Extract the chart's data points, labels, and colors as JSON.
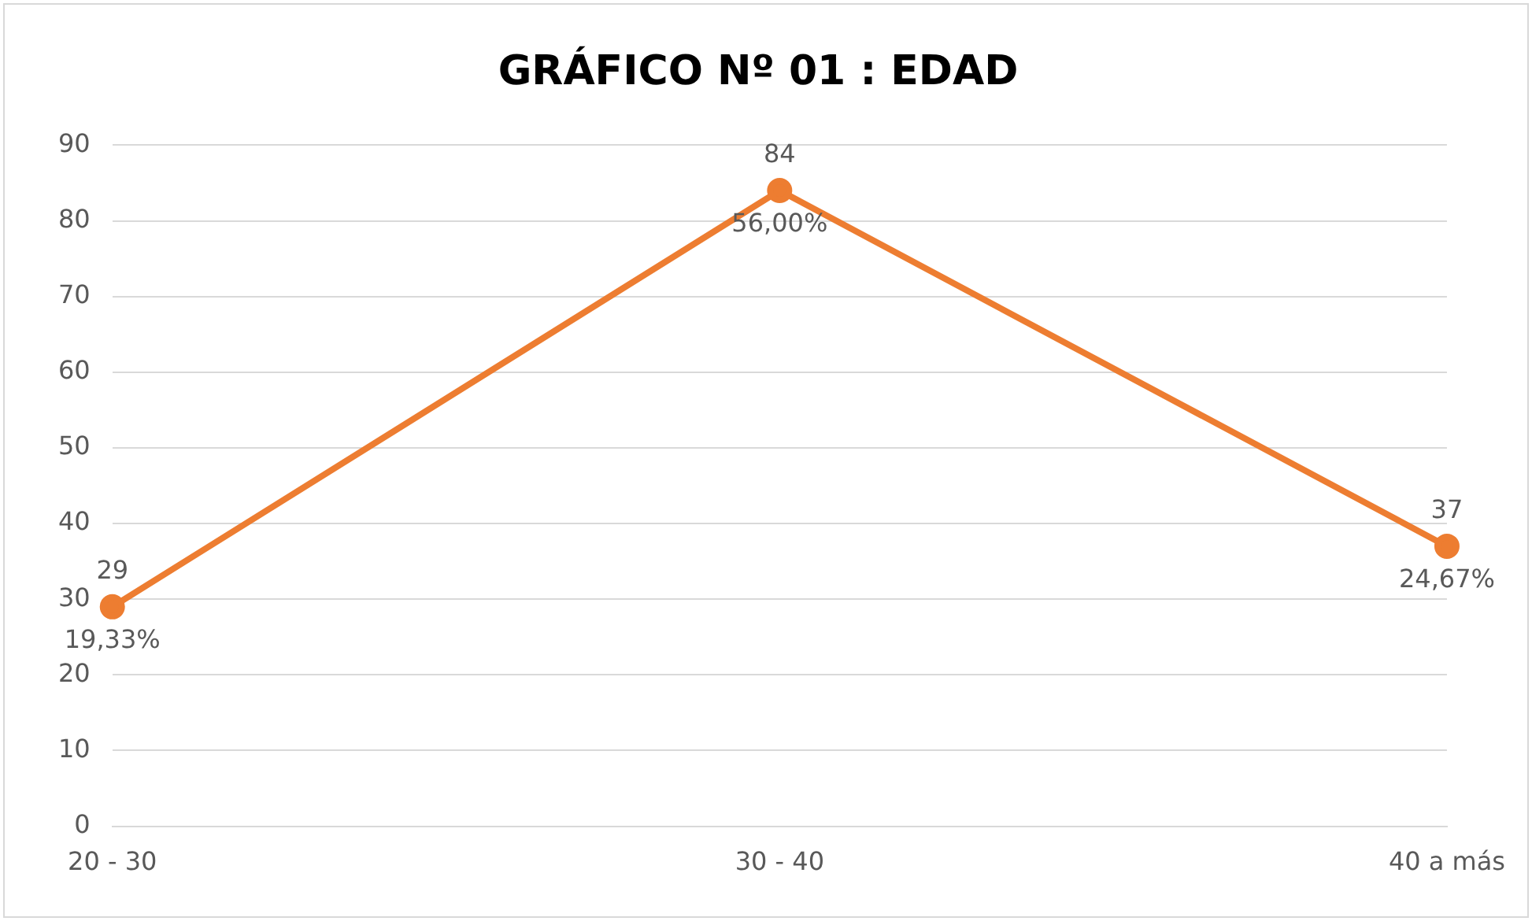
{
  "chart_data": {
    "type": "line",
    "title": "GRÁFICO Nº 01 : EDAD",
    "categories": [
      "20 - 30",
      "30 - 40",
      "40 a más"
    ],
    "series": [
      {
        "color": "#ed7d31",
        "values": [
          29,
          84,
          37
        ]
      }
    ],
    "ylim": [
      0,
      90
    ],
    "yticks": [
      0,
      10,
      20,
      30,
      40,
      50,
      60,
      70,
      80,
      90
    ],
    "grid": "y",
    "legend": false,
    "marker": "circle",
    "line_style": "solid",
    "data_labels": true,
    "annotations": [
      {
        "text": "19,33%",
        "x": "20 - 30",
        "y": 29
      },
      {
        "text": "56,00%",
        "x": "30 - 40",
        "y": 84
      },
      {
        "text": "24,67%",
        "x": "40 a más",
        "y": 37
      }
    ]
  }
}
